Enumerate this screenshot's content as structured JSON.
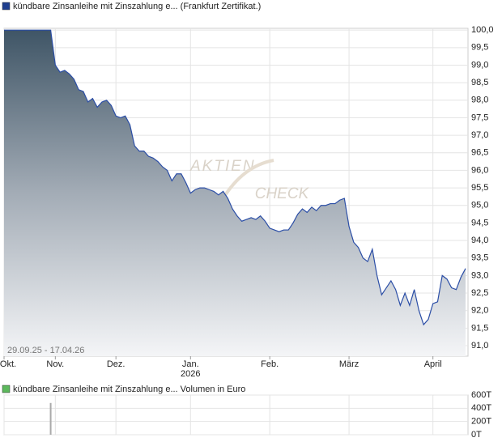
{
  "chart_data": [
    {
      "type": "area",
      "title": "kündbare Zinsanleihe mit Zinszahlung e... (Frankfurt Zertifikat.)",
      "date_range": "29.09.25 - 17.04.26",
      "watermark": [
        "AKTIEN",
        "CHECK"
      ],
      "year_label": "2026",
      "color": "#2b4ea6",
      "legend_color": "#1f3f8f",
      "grid": true,
      "categories": [
        "Okt.",
        null,
        null,
        null,
        null,
        null,
        null,
        null,
        null,
        null,
        null,
        "Nov.",
        null,
        null,
        null,
        null,
        null,
        null,
        null,
        null,
        null,
        null,
        null,
        null,
        "Dez.",
        null,
        null,
        null,
        null,
        null,
        null,
        null,
        null,
        null,
        null,
        null,
        null,
        null,
        null,
        null,
        "Jan.",
        null,
        null,
        null,
        null,
        null,
        null,
        null,
        null,
        null,
        null,
        null,
        null,
        null,
        null,
        null,
        null,
        "Feb.",
        null,
        null,
        null,
        null,
        null,
        null,
        null,
        null,
        null,
        null,
        null,
        null,
        null,
        null,
        null,
        null,
        "März",
        null,
        null,
        null,
        null,
        null,
        null,
        null,
        null,
        null,
        null,
        null,
        null,
        null,
        null,
        null,
        null,
        null,
        "April",
        null,
        null,
        null,
        null,
        null,
        null,
        null
      ],
      "values": [
        100.0,
        100.0,
        100.0,
        100.0,
        100.0,
        100.0,
        100.0,
        100.0,
        100.0,
        100.0,
        100.0,
        99.0,
        98.8,
        98.85,
        98.75,
        98.6,
        98.3,
        98.25,
        97.95,
        98.05,
        97.8,
        97.95,
        98.0,
        97.85,
        97.55,
        97.5,
        97.55,
        97.3,
        96.7,
        96.55,
        96.55,
        96.4,
        96.35,
        96.25,
        96.1,
        96.0,
        95.7,
        95.9,
        95.9,
        95.65,
        95.35,
        95.45,
        95.5,
        95.5,
        95.45,
        95.4,
        95.3,
        95.4,
        95.2,
        94.9,
        94.7,
        94.55,
        94.6,
        94.65,
        94.6,
        94.7,
        94.55,
        94.35,
        94.3,
        94.25,
        94.3,
        94.3,
        94.5,
        94.75,
        94.9,
        94.8,
        94.95,
        94.85,
        95.0,
        95.0,
        95.05,
        95.05,
        95.15,
        95.2,
        94.4,
        93.95,
        93.8,
        93.5,
        93.4,
        93.75,
        93.0,
        92.45,
        92.65,
        92.85,
        92.6,
        92.15,
        92.5,
        92.15,
        92.6,
        92.0,
        91.6,
        91.75,
        92.2,
        92.25,
        93.0,
        92.9,
        92.65,
        92.6,
        92.95,
        93.2
      ],
      "ylim": [
        90.7,
        100.05
      ],
      "yticks": [
        {
          "value": 100.0,
          "label": "100,0"
        },
        {
          "value": 99.5,
          "label": "99,5"
        },
        {
          "value": 99.0,
          "label": "99,0"
        },
        {
          "value": 98.5,
          "label": "98,5"
        },
        {
          "value": 98.0,
          "label": "98,0"
        },
        {
          "value": 97.5,
          "label": "97,5"
        },
        {
          "value": 97.0,
          "label": "97,0"
        },
        {
          "value": 96.5,
          "label": "96,5"
        },
        {
          "value": 96.0,
          "label": "96,0"
        },
        {
          "value": 95.5,
          "label": "95,5"
        },
        {
          "value": 95.0,
          "label": "95,0"
        },
        {
          "value": 94.5,
          "label": "94,5"
        },
        {
          "value": 94.0,
          "label": "94,0"
        },
        {
          "value": 93.5,
          "label": "93,5"
        },
        {
          "value": 93.0,
          "label": "93,0"
        },
        {
          "value": 92.5,
          "label": "92,5"
        },
        {
          "value": 92.0,
          "label": "92,0"
        },
        {
          "value": 91.5,
          "label": "91,5"
        },
        {
          "value": 91.0,
          "label": "91,0"
        }
      ]
    },
    {
      "type": "bar",
      "title": "kündbare Zinsanleihe mit Zinszahlung e... Volumen in Euro",
      "color": "#aaaaaa",
      "legend_color": "#5cb85c",
      "grid": true,
      "values": [
        0,
        0,
        0,
        0,
        0,
        0,
        0,
        0,
        0,
        0,
        480000,
        0,
        0,
        0,
        0,
        0,
        0,
        0,
        0,
        0,
        0,
        0,
        0,
        0,
        0,
        0,
        0,
        0,
        0,
        0,
        0,
        0,
        0,
        0,
        0,
        0,
        0,
        0,
        0,
        0,
        0,
        0,
        0,
        0,
        0,
        0,
        0,
        0,
        0,
        0,
        0,
        0,
        0,
        0,
        0,
        0,
        0,
        0,
        0,
        0,
        0,
        0,
        0,
        0,
        0,
        0,
        0,
        0,
        0,
        0,
        0,
        0,
        0,
        0,
        0,
        0,
        0,
        0,
        0,
        0,
        0,
        0,
        0,
        0,
        0,
        0,
        0,
        0,
        0,
        0,
        0,
        0,
        0,
        0,
        0,
        0,
        0,
        0,
        0,
        0
      ],
      "ylim": [
        0,
        600000
      ],
      "yticks": [
        {
          "value": 600000,
          "label": "600T"
        },
        {
          "value": 400000,
          "label": "400T"
        },
        {
          "value": 200000,
          "label": "200T"
        },
        {
          "value": 0,
          "label": "0T"
        }
      ]
    }
  ]
}
